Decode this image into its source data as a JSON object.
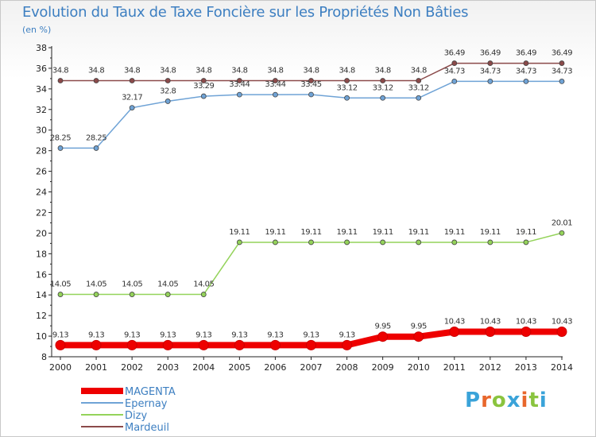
{
  "title": "Evolution du Taux de Taxe Foncière sur les Propriétés Non Bâties",
  "subtitle": "(en %)",
  "logo": {
    "text": "Proxiti",
    "colors": [
      "#3aa3d9",
      "#e8672c",
      "#8ac43f",
      "#3aa3d9",
      "#e8672c",
      "#8ac43f",
      "#3aa3d9"
    ]
  },
  "chart_data": {
    "type": "line",
    "title": "Evolution du Taux de Taxe Foncière sur les Propriétés Non Bâties",
    "ylabel": "(en %)",
    "xlabel": "",
    "ylim": [
      8,
      38
    ],
    "yticks": [
      8,
      10,
      12,
      14,
      16,
      18,
      20,
      22,
      24,
      26,
      28,
      30,
      32,
      34,
      36,
      38
    ],
    "grid": false,
    "categories": [
      "2000",
      "2001",
      "2002",
      "2003",
      "2004",
      "2005",
      "2006",
      "2007",
      "2008",
      "2009",
      "2010",
      "2011",
      "2012",
      "2013",
      "2014"
    ],
    "series": [
      {
        "name": "MAGENTA",
        "color": "#ee0000",
        "values": [
          9.13,
          9.13,
          9.13,
          9.13,
          9.13,
          9.13,
          9.13,
          9.13,
          9.13,
          9.95,
          9.95,
          10.43,
          10.43,
          10.43,
          10.43
        ],
        "labels": [
          "9.13",
          "9.13",
          "9.13",
          "9.13",
          "9.13",
          "9.13",
          "9.13",
          "9.13",
          "9.13",
          "9.95",
          "9.95",
          "10.43",
          "10.43",
          "10.43",
          "10.43"
        ]
      },
      {
        "name": "Epernay",
        "color": "#6fa3d6",
        "values": [
          28.25,
          28.25,
          32.17,
          32.8,
          33.29,
          33.44,
          33.44,
          33.45,
          33.12,
          33.12,
          33.12,
          34.73,
          34.73,
          34.73,
          34.73
        ],
        "labels": [
          "28.25",
          "28.25",
          "32.17",
          "32.8",
          "33.29",
          "33.44",
          "33.44",
          "33.45",
          "33.12",
          "33.12",
          "33.12",
          "34.73",
          "34.73",
          "34.73",
          "34.73"
        ]
      },
      {
        "name": "Dizy",
        "color": "#94d35a",
        "values": [
          14.05,
          14.05,
          14.05,
          14.05,
          14.05,
          19.11,
          19.11,
          19.11,
          19.11,
          19.11,
          19.11,
          19.11,
          19.11,
          19.11,
          20.01
        ],
        "labels": [
          "14.05",
          "14.05",
          "14.05",
          "14.05",
          "14.05",
          "19.11",
          "19.11",
          "19.11",
          "19.11",
          "19.11",
          "19.11",
          "19.11",
          "19.11",
          "19.11",
          "20.01"
        ]
      },
      {
        "name": "Mardeuil",
        "color": "#8b4a4a",
        "values": [
          34.8,
          34.8,
          34.8,
          34.8,
          34.8,
          34.8,
          34.8,
          34.8,
          34.8,
          34.8,
          34.8,
          36.49,
          36.49,
          36.49,
          36.49
        ],
        "labels": [
          "34.8",
          "34.8",
          "34.8",
          "34.8",
          "34.8",
          "34.8",
          "34.8",
          "34.8",
          "34.8",
          "34.8",
          "34.8",
          "36.49",
          "36.49",
          "36.49",
          "36.49"
        ]
      }
    ],
    "legend": {
      "placement": "bottom-left"
    }
  }
}
